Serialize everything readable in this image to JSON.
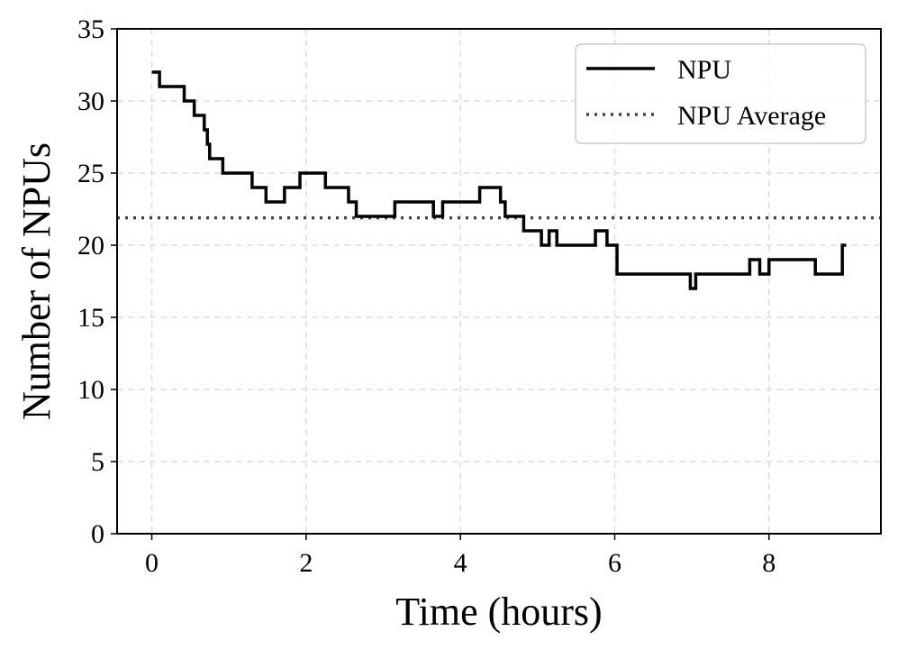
{
  "chart_data": {
    "type": "line",
    "title": "",
    "xlabel": "Time (hours)",
    "ylabel": "Number of NPUs",
    "xlim": [
      -0.45,
      9.45
    ],
    "ylim": [
      0,
      35
    ],
    "xticks": [
      0,
      2,
      4,
      6,
      8
    ],
    "yticks": [
      0,
      5,
      10,
      15,
      20,
      25,
      30,
      35
    ],
    "grid": true,
    "legend_position": "top-right",
    "series": [
      {
        "name": "NPU",
        "style": "step",
        "color": "#000000",
        "x": [
          0,
          0.1,
          0.42,
          0.55,
          0.68,
          0.72,
          0.75,
          0.92,
          1.3,
          1.48,
          1.72,
          1.92,
          2.25,
          2.55,
          2.65,
          3.15,
          3.65,
          3.77,
          4.25,
          4.52,
          4.58,
          4.82,
          5.05,
          5.15,
          5.25,
          5.75,
          5.9,
          6.03,
          6.98,
          7.05,
          7.75,
          7.88,
          8.0,
          8.6,
          8.95,
          9.0
        ],
        "y": [
          32,
          31,
          30,
          29,
          28,
          27,
          26,
          25,
          24,
          23,
          24,
          25,
          24,
          23,
          22,
          23,
          22,
          23,
          24,
          23,
          22,
          21,
          20,
          21,
          20,
          21,
          20,
          18,
          17,
          18,
          19,
          18,
          19,
          18,
          20,
          20
        ]
      },
      {
        "name": "NPU Average",
        "style": "dotted",
        "color": "#444444",
        "y_const": 21.9
      }
    ]
  }
}
